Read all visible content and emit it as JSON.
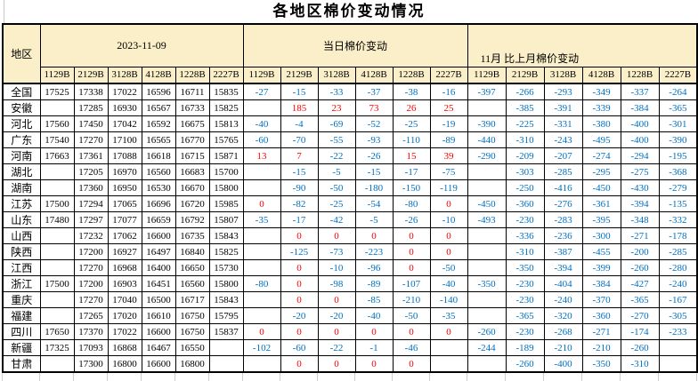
{
  "title": "各地区棉价变动情况",
  "colors": {
    "header_bg": "#FBEFC9",
    "negative_value": "#0070C0",
    "positive_value": "#FF0000",
    "border": "#000000",
    "gridline_stub": "#C9C9C9"
  },
  "chart_data": {
    "type": "table",
    "title": "各地区棉价变动情况",
    "region_column_header": "地区",
    "column_groups": [
      {
        "label": "2023-11-09",
        "columns": [
          "1129B",
          "2129B",
          "3128B",
          "4128B",
          "1228B",
          "2227B"
        ]
      },
      {
        "label": "当日棉价变动",
        "columns": [
          "1129B",
          "2129B",
          "3128B",
          "4128B",
          "1228B",
          "2227B"
        ]
      },
      {
        "label": "11月 比上月棉价变动",
        "columns": [
          "1129B",
          "2129B",
          "3128B",
          "4128B",
          "1228B",
          "2227B"
        ]
      }
    ],
    "value_color_rule": "negative values blue #0070C0; zero and positive values red #FF0000; price levels black",
    "rows": [
      {
        "region": "全国",
        "prices": [
          "17525",
          "17338",
          "17022",
          "16596",
          "16711",
          "15835"
        ],
        "daily_change": [
          "-27",
          "-15",
          "-33",
          "-37",
          "-38",
          "-16"
        ],
        "monthly_change": [
          "-397",
          "-266",
          "-293",
          "-349",
          "-337",
          "-264"
        ]
      },
      {
        "region": "安徽",
        "prices": [
          "",
          "17285",
          "16930",
          "16567",
          "16733",
          "15825"
        ],
        "daily_change": [
          "",
          "185",
          "23",
          "73",
          "26",
          "25"
        ],
        "monthly_change": [
          "",
          "-385",
          "-391",
          "-339",
          "-384",
          "-365"
        ]
      },
      {
        "region": "河北",
        "prices": [
          "17560",
          "17450",
          "17042",
          "16592",
          "16675",
          "15813"
        ],
        "daily_change": [
          "-40",
          "-4",
          "-69",
          "-52",
          "-25",
          "-19"
        ],
        "monthly_change": [
          "-390",
          "-225",
          "-331",
          "-380",
          "-400",
          "-301"
        ]
      },
      {
        "region": "广东",
        "prices": [
          "17540",
          "17270",
          "17100",
          "16565",
          "16770",
          "15765"
        ],
        "daily_change": [
          "-60",
          "-70",
          "-55",
          "-93",
          "-110",
          "-89"
        ],
        "monthly_change": [
          "-440",
          "-310",
          "-243",
          "-495",
          "-400",
          "-390"
        ]
      },
      {
        "region": "河南",
        "prices": [
          "17663",
          "17361",
          "17088",
          "16618",
          "16715",
          "15871"
        ],
        "daily_change": [
          "13",
          "7",
          "-22",
          "-26",
          "15",
          "39"
        ],
        "monthly_change": [
          "-290",
          "-209",
          "-207",
          "-274",
          "-294",
          "-195"
        ]
      },
      {
        "region": "湖北",
        "prices": [
          "",
          "17205",
          "16970",
          "16560",
          "16683",
          "15700"
        ],
        "daily_change": [
          "",
          "-15",
          "-5",
          "-15",
          "-17",
          "-75"
        ],
        "monthly_change": [
          "",
          "-303",
          "-285",
          "-295",
          "-275",
          "-368"
        ]
      },
      {
        "region": "湖南",
        "prices": [
          "",
          "17360",
          "16950",
          "16530",
          "16670",
          "15800"
        ],
        "daily_change": [
          "",
          "-90",
          "-50",
          "-180",
          "-150",
          "-119"
        ],
        "monthly_change": [
          "",
          "-250",
          "-416",
          "-450",
          "-430",
          "-279"
        ]
      },
      {
        "region": "江苏",
        "prices": [
          "17500",
          "17294",
          "17065",
          "16696",
          "16720",
          "15985"
        ],
        "daily_change": [
          "0",
          "-82",
          "-25",
          "-54",
          "-80",
          "0"
        ],
        "monthly_change": [
          "-450",
          "-360",
          "-276",
          "-361",
          "-394",
          "-135"
        ]
      },
      {
        "region": "山东",
        "prices": [
          "17480",
          "17297",
          "17077",
          "16659",
          "16792",
          "15807"
        ],
        "daily_change": [
          "-35",
          "-17",
          "-42",
          "-5",
          "-26",
          "-10"
        ],
        "monthly_change": [
          "-493",
          "-230",
          "-283",
          "-395",
          "-348",
          "-332"
        ]
      },
      {
        "region": "山西",
        "prices": [
          "",
          "17232",
          "17062",
          "16600",
          "16735",
          "15843"
        ],
        "daily_change": [
          "",
          "0",
          "0",
          "0",
          "0",
          "0"
        ],
        "monthly_change": [
          "",
          "-336",
          "-236",
          "-300",
          "-271",
          "-178"
        ]
      },
      {
        "region": "陕西",
        "prices": [
          "",
          "17200",
          "16927",
          "16497",
          "16840",
          "15825"
        ],
        "daily_change": [
          "",
          "-125",
          "-73",
          "-223",
          "0",
          "0"
        ],
        "monthly_change": [
          "",
          "-310",
          "-387",
          "-455",
          "-200",
          "-285"
        ]
      },
      {
        "region": "江西",
        "prices": [
          "",
          "17270",
          "16968",
          "16400",
          "16650",
          "15730"
        ],
        "daily_change": [
          "",
          "0",
          "-10",
          "-96",
          "0",
          "-50"
        ],
        "monthly_change": [
          "",
          "-350",
          "-394",
          "-399",
          "-260",
          "-280"
        ]
      },
      {
        "region": "浙江",
        "prices": [
          "17500",
          "17200",
          "16903",
          "16451",
          "16560",
          "15800"
        ],
        "daily_change": [
          "-80",
          "0",
          "-98",
          "-89",
          "-107",
          "-40"
        ],
        "monthly_change": [
          "-350",
          "-230",
          "-404",
          "-384",
          "-427",
          "-240"
        ]
      },
      {
        "region": "重庆",
        "prices": [
          "",
          "17270",
          "17040",
          "16500",
          "16717",
          "15843"
        ],
        "daily_change": [
          "",
          "0",
          "0",
          "-85",
          "-210",
          "-140"
        ],
        "monthly_change": [
          "",
          "-230",
          "-240",
          "-370",
          "-365",
          "-167"
        ]
      },
      {
        "region": "福建",
        "prices": [
          "",
          "17265",
          "17020",
          "16610",
          "16750",
          "15795"
        ],
        "daily_change": [
          "",
          "-20",
          "-20",
          "-40",
          "-50",
          "-35"
        ],
        "monthly_change": [
          "",
          "-365",
          "-320",
          "-360",
          "-270",
          "-305"
        ]
      },
      {
        "region": "四川",
        "prices": [
          "17650",
          "17370",
          "17022",
          "16600",
          "16750",
          "15837"
        ],
        "daily_change": [
          "0",
          "0",
          "0",
          "0",
          "0",
          "0"
        ],
        "monthly_change": [
          "-260",
          "-230",
          "-268",
          "-271",
          "-174",
          "-233"
        ]
      },
      {
        "region": "新疆",
        "prices": [
          "17325",
          "17093",
          "16868",
          "16467",
          "16550",
          ""
        ],
        "daily_change": [
          "-102",
          "-60",
          "-22",
          "-1",
          "-46",
          ""
        ],
        "monthly_change": [
          "-244",
          "-189",
          "-210",
          "-210",
          "-260",
          ""
        ]
      },
      {
        "region": "甘肃",
        "prices": [
          "",
          "17300",
          "16800",
          "16600",
          "16800",
          ""
        ],
        "daily_change": [
          "",
          "0",
          "0",
          "0",
          "0",
          ""
        ],
        "monthly_change": [
          "",
          "-260",
          "-400",
          "-350",
          "-310",
          ""
        ]
      }
    ]
  }
}
